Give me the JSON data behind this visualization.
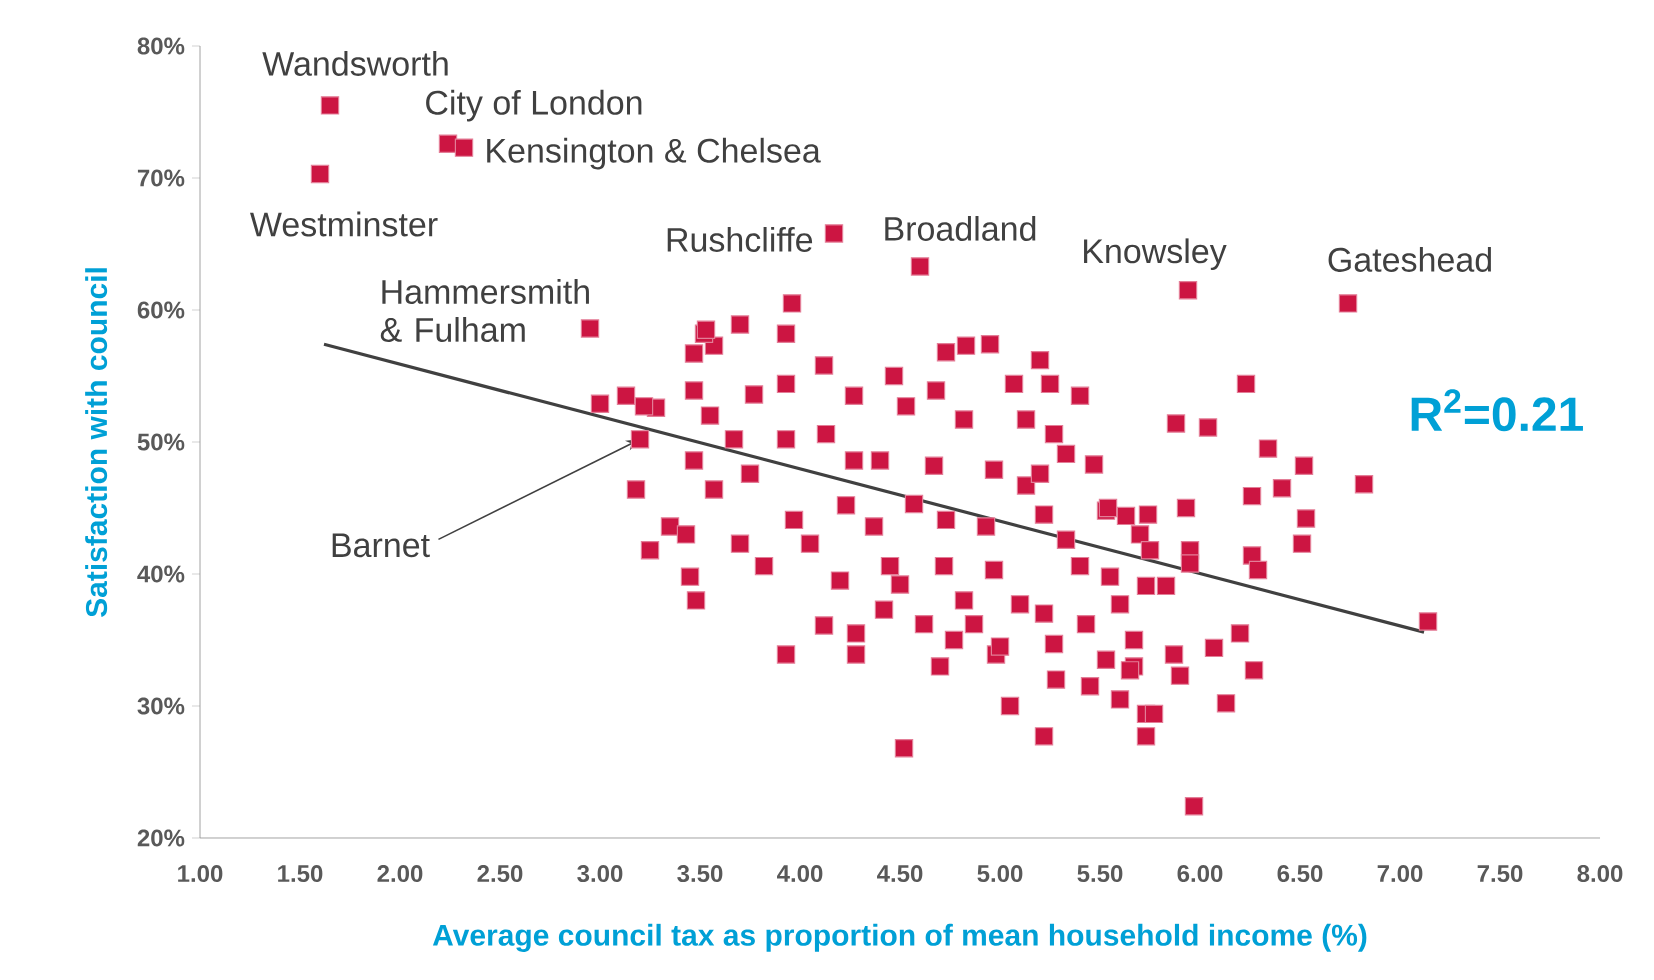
{
  "chart_data": {
    "type": "scatter",
    "xlabel": "Average council tax as proportion of mean household income (%)",
    "ylabel": "Satisfaction with council",
    "xlim": [
      1,
      8
    ],
    "ylim": [
      20,
      80
    ],
    "xticks": [
      {
        "value": 1,
        "label": "1.00"
      },
      {
        "value": 1.5,
        "label": "1.50"
      },
      {
        "value": 2,
        "label": "2.00"
      },
      {
        "value": 2.5,
        "label": "2.50"
      },
      {
        "value": 3,
        "label": "3.00"
      },
      {
        "value": 3.5,
        "label": "3.50"
      },
      {
        "value": 4,
        "label": "4.00"
      },
      {
        "value": 4.5,
        "label": "4.50"
      },
      {
        "value": 5,
        "label": "5.00"
      },
      {
        "value": 5.5,
        "label": "5.50"
      },
      {
        "value": 6,
        "label": "6.00"
      },
      {
        "value": 6.5,
        "label": "6.50"
      },
      {
        "value": 7,
        "label": "7.00"
      },
      {
        "value": 7.5,
        "label": "7.50"
      },
      {
        "value": 8,
        "label": "8.00"
      }
    ],
    "yticks": [
      {
        "value": 20,
        "label": "20%"
      },
      {
        "value": 30,
        "label": "30%"
      },
      {
        "value": 40,
        "label": "40%"
      },
      {
        "value": 50,
        "label": "50%"
      },
      {
        "value": 60,
        "label": "60%"
      },
      {
        "value": 70,
        "label": "70%"
      },
      {
        "value": 80,
        "label": "80%"
      }
    ],
    "series": [
      {
        "marker": "square",
        "color": "#cc1542",
        "x": [
          1.65,
          2.24,
          2.32,
          1.6,
          2.95,
          4.17,
          4.6,
          5.94,
          6.74,
          7.14,
          5.97,
          4.52,
          3.96,
          3.93,
          3.7,
          3.47,
          3.57,
          3.52,
          4.73,
          4.95,
          4.83,
          4.12,
          4.47,
          4.68,
          5.07,
          5.2,
          5.25,
          5.4,
          3.77,
          3.47,
          3.0,
          3.28,
          3.13,
          3.2,
          3.55,
          3.93,
          4.27,
          4.53,
          4.82,
          5.13,
          5.27,
          5.47,
          5.33,
          3.47,
          3.67,
          3.93,
          4.13,
          4.27,
          4.4,
          4.67,
          4.97,
          5.13,
          5.2,
          3.18,
          3.57,
          3.75,
          3.97,
          4.23,
          4.37,
          4.57,
          4.73,
          4.93,
          5.22,
          5.53,
          5.33,
          3.25,
          3.35,
          3.43,
          3.7,
          3.82,
          4.05,
          4.2,
          4.45,
          4.5,
          4.72,
          4.97,
          3.45,
          3.48,
          4.12,
          4.28,
          4.28,
          3.93,
          4.42,
          4.62,
          4.77,
          4.82,
          4.87,
          4.98,
          5.1,
          5.22,
          5.27,
          4.7,
          5.28,
          5.05,
          5.22,
          5.43,
          5.45,
          5.53,
          5.6,
          5.6,
          5.67,
          5.73,
          5.73,
          5.73,
          5.63,
          5.7,
          6.23,
          5.88,
          6.04,
          6.34,
          6.52,
          6.82,
          6.26,
          6.41,
          6.53,
          6.51,
          6.26,
          6.29,
          5.95,
          5.93,
          5.74,
          5.54,
          6.2,
          6.27,
          6.13,
          5.77,
          5.65,
          5.9,
          6.07,
          5.87,
          5.67,
          5.83,
          5.95,
          5.55,
          5.4,
          5.75,
          5.0,
          3.22,
          3.53
        ],
        "values": [
          75.5,
          72.6,
          72.3,
          70.3,
          58.6,
          65.8,
          63.3,
          61.5,
          60.5,
          36.4,
          22.4,
          26.8,
          60.5,
          58.2,
          58.9,
          56.7,
          57.3,
          58.2,
          56.8,
          57.4,
          57.3,
          55.8,
          55.0,
          53.9,
          54.4,
          56.2,
          54.4,
          53.5,
          53.6,
          53.9,
          52.9,
          52.6,
          53.5,
          50.2,
          52.0,
          54.4,
          53.5,
          52.7,
          51.7,
          51.7,
          50.6,
          48.3,
          49.1,
          48.6,
          50.2,
          50.2,
          50.6,
          48.6,
          48.6,
          48.2,
          47.9,
          46.7,
          47.6,
          46.4,
          46.4,
          47.6,
          44.1,
          45.2,
          43.6,
          45.3,
          44.1,
          43.6,
          44.5,
          44.8,
          42.6,
          41.8,
          43.6,
          43.0,
          42.3,
          40.6,
          42.3,
          39.5,
          40.6,
          39.2,
          40.6,
          40.3,
          39.8,
          38.0,
          36.1,
          35.5,
          33.9,
          33.9,
          37.3,
          36.2,
          35.0,
          38.0,
          36.2,
          33.9,
          37.7,
          37.0,
          34.7,
          33.0,
          32.0,
          30.0,
          27.7,
          36.2,
          31.5,
          33.5,
          37.7,
          30.5,
          33.0,
          29.4,
          27.7,
          39.1,
          44.4,
          43.0,
          54.4,
          51.4,
          51.1,
          49.5,
          48.2,
          46.8,
          45.9,
          46.5,
          44.2,
          42.3,
          41.4,
          40.3,
          41.8,
          45.0,
          44.5,
          45.0,
          35.5,
          32.7,
          30.2,
          29.4,
          32.7,
          32.3,
          34.4,
          33.9,
          35.0,
          39.1,
          40.8,
          39.8,
          40.6,
          41.8,
          34.5,
          52.7,
          58.5
        ]
      },
      {
        "type": "line",
        "marker": "none",
        "color": "#404040",
        "line_style": "solid",
        "x": [
          1.62,
          7.12
        ],
        "values": [
          57.4,
          35.6
        ]
      }
    ],
    "annotations": [
      {
        "text": "Wandsworth",
        "x": 1.65,
        "y": 75.5
      },
      {
        "text": "City of London",
        "x": 2.24,
        "y": 72.6
      },
      {
        "text": "Kensington & Chelsea",
        "x": 2.32,
        "y": 72.3
      },
      {
        "text": "Westminster",
        "x": 1.6,
        "y": 70.3
      },
      {
        "text": "Hammersmith & Fulham",
        "x": 2.95,
        "y": 58.6
      },
      {
        "text": "Rushcliffe",
        "x": 4.17,
        "y": 65.8
      },
      {
        "text": "Broadland",
        "x": 4.6,
        "y": 63.3
      },
      {
        "text": "Knowsley",
        "x": 5.94,
        "y": 61.5
      },
      {
        "text": "Gateshead",
        "x": 6.74,
        "y": 60.5
      },
      {
        "text": "Barnet",
        "x": 3.2,
        "y": 50.2
      },
      "R$^{2}$=0.21"
    ]
  }
}
